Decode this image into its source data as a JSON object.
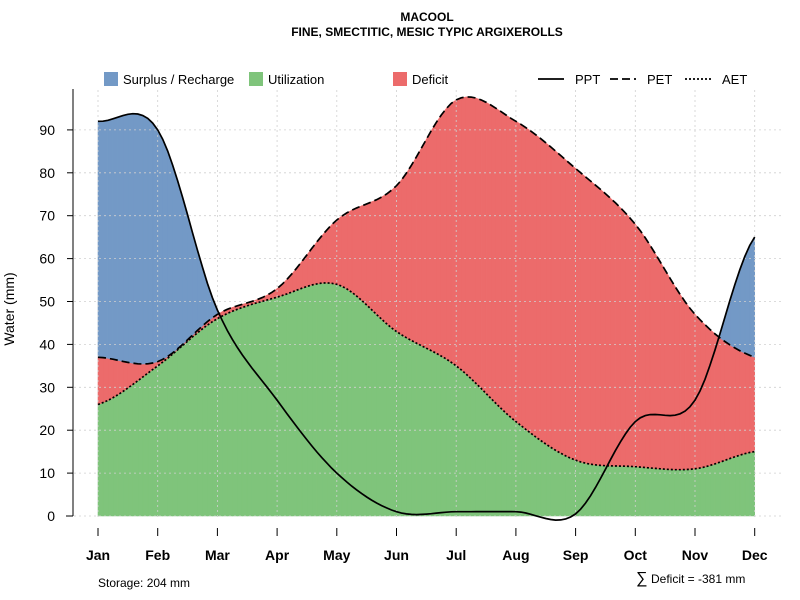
{
  "chart_data": {
    "type": "area",
    "title": "MACOOL",
    "subtitle": "FINE, SMECTITIC, MESIC TYPIC ARGIXEROLLS",
    "xlabel": "",
    "ylabel": "Water (mm)",
    "categories": [
      "Jan",
      "Feb",
      "Mar",
      "Apr",
      "May",
      "Jun",
      "Jul",
      "Aug",
      "Sep",
      "Oct",
      "Nov",
      "Dec"
    ],
    "ylim": [
      0,
      100
    ],
    "yticks": [
      0,
      10,
      20,
      30,
      40,
      50,
      60,
      70,
      80,
      90
    ],
    "grid": true,
    "legend": [
      {
        "label": "Surplus / Recharge",
        "kind": "area",
        "color": "#7399c6"
      },
      {
        "label": "Utilization",
        "kind": "area",
        "color": "#7fc47b"
      },
      {
        "label": "Deficit",
        "kind": "area",
        "color": "#ec6b6b"
      },
      {
        "label": "PPT",
        "kind": "line",
        "dash": "solid"
      },
      {
        "label": "PET",
        "kind": "line",
        "dash": "dashed"
      },
      {
        "label": "AET",
        "kind": "line",
        "dash": "dotted"
      }
    ],
    "series": [
      {
        "name": "PPT",
        "values": [
          92,
          90,
          48,
          27,
          10,
          1,
          1,
          1,
          0.5,
          22,
          27,
          65
        ]
      },
      {
        "name": "PET",
        "values": [
          37,
          36,
          47,
          53,
          69,
          77,
          97,
          92,
          81,
          68,
          47,
          37
        ]
      },
      {
        "name": "AET",
        "values": [
          26,
          35,
          46,
          51,
          54,
          43,
          35,
          22,
          13,
          11.5,
          11,
          15
        ]
      }
    ],
    "annotations": {
      "storage": "Storage: 204 mm",
      "deficit_symbol": "∑",
      "deficit": "Deficit = -381 mm"
    }
  },
  "colors": {
    "surplus": "#7399c6",
    "utilization": "#7fc47b",
    "deficit": "#ec6b6b",
    "grid": "#d0d0d0",
    "line": "#000000"
  }
}
